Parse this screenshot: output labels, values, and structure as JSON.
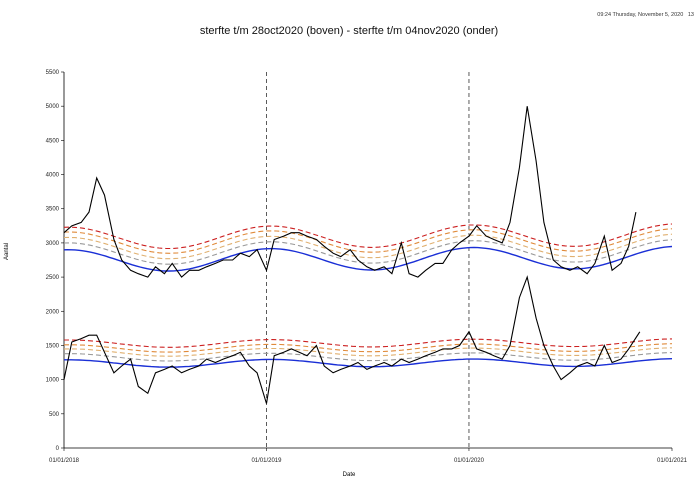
{
  "header": {
    "timestamp": "09:24 Thursday, November 5, 2020",
    "timestamp_suffix": "13"
  },
  "chart_data": {
    "type": "line",
    "title": "sterfte t/m 28oct2020 (boven) -  sterfte t/m 04nov2020 (onder)",
    "xlabel": "Date",
    "ylabel": "Aantal",
    "ylim": [
      0,
      5500
    ],
    "yticks": [
      0,
      500,
      1000,
      1500,
      2000,
      2500,
      3000,
      3500,
      4000,
      4500,
      5000,
      5500
    ],
    "ytick_labels": [
      "0",
      "500",
      "1000",
      "1500",
      "2000",
      "2500",
      "3000",
      "3500",
      "4000",
      "4500",
      "5000",
      "5500"
    ],
    "xlim": [
      "2018-01-01",
      "2021-01-01"
    ],
    "xtick_labels": [
      "01/01/2018",
      "01/01/2019",
      "01/01/2020",
      "01/01/2021"
    ],
    "vlines": [
      "2019-01-01",
      "2020-01-01"
    ],
    "grid": false,
    "colors": {
      "observed": "#000000",
      "baseline": "#1a2fd6",
      "band1": "#e0b070",
      "band2": "#e08a3a",
      "band3": "#cc2020",
      "band0": "#999999"
    },
    "upper": {
      "weeks": [
        "2018-01-01",
        "2018-01-15",
        "2018-02-01",
        "2018-02-15",
        "2018-03-01",
        "2018-03-15",
        "2018-04-01",
        "2018-04-15",
        "2018-05-01",
        "2018-05-15",
        "2018-06-01",
        "2018-06-15",
        "2018-07-01",
        "2018-07-15",
        "2018-08-01",
        "2018-08-15",
        "2018-09-01",
        "2018-09-15",
        "2018-10-01",
        "2018-10-15",
        "2018-11-01",
        "2018-11-15",
        "2018-12-01",
        "2018-12-15",
        "2019-01-01",
        "2019-01-15",
        "2019-02-01",
        "2019-02-15",
        "2019-03-01",
        "2019-03-15",
        "2019-04-01",
        "2019-04-15",
        "2019-05-01",
        "2019-05-15",
        "2019-06-01",
        "2019-06-15",
        "2019-07-01",
        "2019-07-15",
        "2019-08-01",
        "2019-08-15",
        "2019-09-01",
        "2019-09-15",
        "2019-10-01",
        "2019-10-15",
        "2019-11-01",
        "2019-11-15",
        "2019-12-01",
        "2019-12-15",
        "2020-01-01",
        "2020-01-15",
        "2020-02-01",
        "2020-02-15",
        "2020-03-01",
        "2020-03-15",
        "2020-04-01",
        "2020-04-15",
        "2020-05-01",
        "2020-05-15",
        "2020-06-01",
        "2020-06-15",
        "2020-07-01",
        "2020-07-15",
        "2020-08-01",
        "2020-08-15",
        "2020-09-01",
        "2020-09-15",
        "2020-10-01",
        "2020-10-15",
        "2020-10-28"
      ],
      "observed": [
        3150,
        3250,
        3300,
        3450,
        3950,
        3700,
        3050,
        2750,
        2600,
        2550,
        2500,
        2650,
        2550,
        2700,
        2500,
        2600,
        2600,
        2650,
        2700,
        2750,
        2750,
        2850,
        2800,
        2900,
        2600,
        3050,
        3100,
        3150,
        3150,
        3100,
        3050,
        2950,
        2850,
        2800,
        2900,
        2750,
        2650,
        2600,
        2650,
        2550,
        3000,
        2550,
        2500,
        2600,
        2700,
        2700,
        2900,
        3000,
        3100,
        3250,
        3100,
        3050,
        3000,
        3300,
        4100,
        5000,
        4200,
        3300,
        2750,
        2650,
        2600,
        2650,
        2550,
        2700,
        3100,
        2600,
        2700,
        2950,
        3450
      ],
      "baseline_peak": 2900,
      "baseline_trough": 2580,
      "band_offsets": [
        100,
        180,
        260,
        330
      ]
    },
    "lower": {
      "weeks": [
        "2018-01-01",
        "2018-01-15",
        "2018-02-01",
        "2018-02-15",
        "2018-03-01",
        "2018-03-15",
        "2018-04-01",
        "2018-04-15",
        "2018-05-01",
        "2018-05-15",
        "2018-06-01",
        "2018-06-15",
        "2018-07-01",
        "2018-07-15",
        "2018-08-01",
        "2018-08-15",
        "2018-09-01",
        "2018-09-15",
        "2018-10-01",
        "2018-10-15",
        "2018-11-01",
        "2018-11-15",
        "2018-12-01",
        "2018-12-15",
        "2019-01-01",
        "2019-01-15",
        "2019-02-01",
        "2019-02-15",
        "2019-03-01",
        "2019-03-15",
        "2019-04-01",
        "2019-04-15",
        "2019-05-01",
        "2019-05-15",
        "2019-06-01",
        "2019-06-15",
        "2019-07-01",
        "2019-07-15",
        "2019-08-01",
        "2019-08-15",
        "2019-09-01",
        "2019-09-15",
        "2019-10-01",
        "2019-10-15",
        "2019-11-01",
        "2019-11-15",
        "2019-12-01",
        "2019-12-15",
        "2020-01-01",
        "2020-01-15",
        "2020-02-01",
        "2020-02-15",
        "2020-03-01",
        "2020-03-15",
        "2020-04-01",
        "2020-04-15",
        "2020-05-01",
        "2020-05-15",
        "2020-06-01",
        "2020-06-15",
        "2020-07-01",
        "2020-07-15",
        "2020-08-01",
        "2020-08-15",
        "2020-09-01",
        "2020-09-15",
        "2020-10-01",
        "2020-10-15",
        "2020-11-04"
      ],
      "observed": [
        1000,
        1550,
        1600,
        1650,
        1650,
        1400,
        1100,
        1200,
        1300,
        900,
        800,
        1100,
        1150,
        1200,
        1100,
        1150,
        1200,
        1300,
        1250,
        1300,
        1350,
        1400,
        1200,
        1100,
        650,
        1350,
        1400,
        1450,
        1400,
        1350,
        1500,
        1200,
        1100,
        1150,
        1200,
        1250,
        1150,
        1200,
        1250,
        1200,
        1300,
        1250,
        1300,
        1350,
        1400,
        1450,
        1450,
        1500,
        1700,
        1450,
        1400,
        1350,
        1300,
        1500,
        2200,
        2500,
        1900,
        1500,
        1200,
        1000,
        1100,
        1200,
        1250,
        1200,
        1500,
        1250,
        1300,
        1450,
        1700
      ],
      "baseline_peak": 1290,
      "baseline_trough": 1180,
      "band_offsets": [
        90,
        160,
        220,
        290
      ]
    }
  }
}
